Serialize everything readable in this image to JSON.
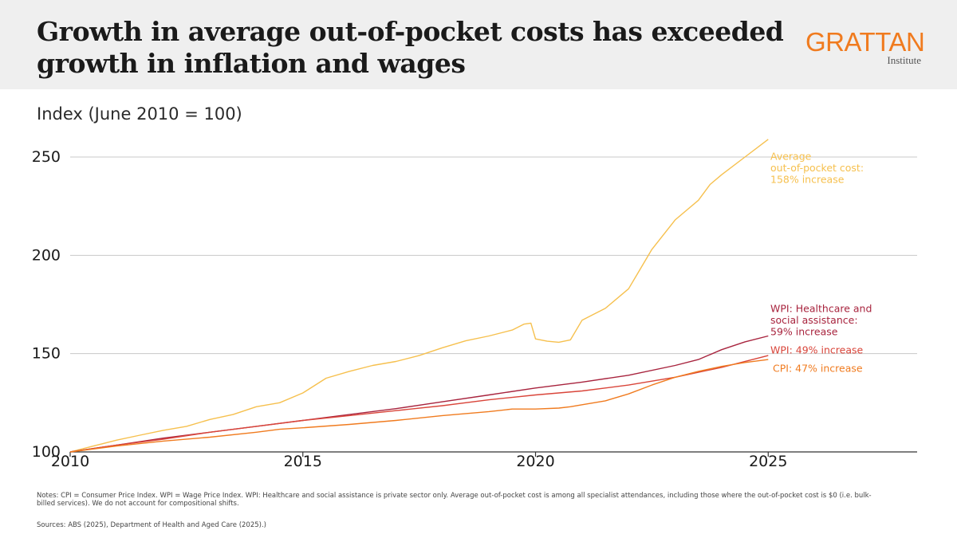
{
  "header": {
    "title": "Growth in average out-of-pocket costs has exceeded growth in inflation and wages",
    "logo_main": "GRATTAN",
    "logo_sub": "Institute"
  },
  "chart_data": {
    "type": "line",
    "subtitle": "Index (June 2010 = 100)",
    "xlim": [
      2010,
      2028.2
    ],
    "ylim": [
      100,
      265
    ],
    "x_ticks": [
      2010,
      2015,
      2020,
      2025
    ],
    "y_ticks": [
      100,
      150,
      200,
      250
    ],
    "grid": true,
    "series": [
      {
        "name": "Average out-of-pocket cost",
        "color": "#f6c04e",
        "label_lines": [
          "Average",
          "out-of-pocket cost:",
          "158% increase"
        ],
        "points": [
          [
            2010.0,
            100
          ],
          [
            2010.5,
            103
          ],
          [
            2011.0,
            106
          ],
          [
            2011.5,
            108.5
          ],
          [
            2012.0,
            111
          ],
          [
            2012.5,
            113
          ],
          [
            2013.0,
            116.5
          ],
          [
            2013.5,
            119
          ],
          [
            2014.0,
            123
          ],
          [
            2014.5,
            125
          ],
          [
            2015.0,
            130
          ],
          [
            2015.5,
            137.5
          ],
          [
            2016.0,
            141
          ],
          [
            2016.5,
            144
          ],
          [
            2017.0,
            146
          ],
          [
            2017.5,
            149
          ],
          [
            2018.0,
            153
          ],
          [
            2018.5,
            156.5
          ],
          [
            2019.0,
            159
          ],
          [
            2019.5,
            162
          ],
          [
            2019.75,
            165
          ],
          [
            2019.9,
            165.5
          ],
          [
            2020.0,
            157.5
          ],
          [
            2020.25,
            156.3
          ],
          [
            2020.5,
            155.8
          ],
          [
            2020.75,
            157
          ],
          [
            2021.0,
            167
          ],
          [
            2021.25,
            170
          ],
          [
            2021.5,
            173
          ],
          [
            2022.0,
            183
          ],
          [
            2022.25,
            193
          ],
          [
            2022.5,
            203
          ],
          [
            2023.0,
            218
          ],
          [
            2023.5,
            228
          ],
          [
            2023.75,
            236
          ],
          [
            2024.0,
            241
          ],
          [
            2024.5,
            250
          ],
          [
            2025.0,
            259
          ]
        ]
      },
      {
        "name": "WPI: Healthcare and social assistance",
        "color": "#a8243e",
        "label_lines": [
          "WPI: Healthcare and",
          "social assistance:",
          "59% increase"
        ],
        "points": [
          [
            2010.0,
            100
          ],
          [
            2011.0,
            103.5
          ],
          [
            2012.0,
            107
          ],
          [
            2013.0,
            110
          ],
          [
            2014.0,
            113
          ],
          [
            2015.0,
            116
          ],
          [
            2016.0,
            119
          ],
          [
            2017.0,
            122
          ],
          [
            2018.0,
            125.5
          ],
          [
            2019.0,
            129
          ],
          [
            2020.0,
            132.5
          ],
          [
            2021.0,
            135.5
          ],
          [
            2022.0,
            139
          ],
          [
            2023.0,
            144
          ],
          [
            2023.5,
            147
          ],
          [
            2024.0,
            152
          ],
          [
            2024.5,
            156
          ],
          [
            2025.0,
            159
          ]
        ]
      },
      {
        "name": "WPI",
        "color": "#d9453a",
        "label_lines": [
          "WPI: 49% increase"
        ],
        "points": [
          [
            2010.0,
            100
          ],
          [
            2011.0,
            103.5
          ],
          [
            2012.0,
            106.5
          ],
          [
            2013.0,
            110
          ],
          [
            2014.0,
            113
          ],
          [
            2015.0,
            116
          ],
          [
            2016.0,
            118.5
          ],
          [
            2017.0,
            121
          ],
          [
            2018.0,
            123.5
          ],
          [
            2019.0,
            126.5
          ],
          [
            2020.0,
            129
          ],
          [
            2021.0,
            131
          ],
          [
            2022.0,
            134
          ],
          [
            2023.0,
            138
          ],
          [
            2024.0,
            143
          ],
          [
            2025.0,
            149
          ]
        ]
      },
      {
        "name": "CPI",
        "color": "#f07b1f",
        "label_lines": [
          "CPI: 47% increase"
        ],
        "points": [
          [
            2010.0,
            100
          ],
          [
            2011.0,
            103
          ],
          [
            2012.0,
            105.5
          ],
          [
            2013.0,
            107.5
          ],
          [
            2014.0,
            110
          ],
          [
            2014.5,
            111.5
          ],
          [
            2015.0,
            112.3
          ],
          [
            2016.0,
            114
          ],
          [
            2017.0,
            116
          ],
          [
            2018.0,
            118.5
          ],
          [
            2019.0,
            120.5
          ],
          [
            2019.5,
            121.8
          ],
          [
            2020.0,
            121.8
          ],
          [
            2020.5,
            122.3
          ],
          [
            2020.75,
            123
          ],
          [
            2021.0,
            124
          ],
          [
            2021.5,
            126
          ],
          [
            2022.0,
            129.5
          ],
          [
            2022.5,
            134
          ],
          [
            2023.0,
            138
          ],
          [
            2023.5,
            141
          ],
          [
            2024.0,
            143.5
          ],
          [
            2024.5,
            145.5
          ],
          [
            2025.0,
            147
          ]
        ]
      }
    ]
  },
  "footer": {
    "notes": "Notes: CPI = Consumer Price Index. WPI = Wage Price Index. WPI: Healthcare and social assistance is private sector only. Average out-of-pocket cost is among all specialist attendances, including those where the out-of-pocket cost is $0 (i.e. bulk-billed services). We do not account for compositional shifts.",
    "sources": "Sources: ABS (2025), Department of Health and Aged Care (2025).)"
  }
}
